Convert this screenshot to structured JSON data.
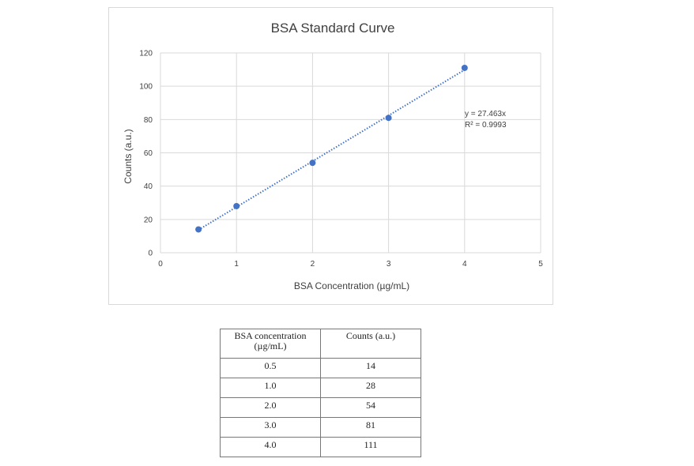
{
  "chart_data": {
    "type": "scatter",
    "title": "BSA Standard Curve",
    "xlabel": "BSA Concentration (µg/mL)",
    "ylabel": "Counts (a.u.)",
    "xlim": [
      0,
      5
    ],
    "ylim": [
      0,
      120
    ],
    "xticks": [
      "0",
      "1",
      "2",
      "3",
      "4",
      "5"
    ],
    "yticks": [
      "0",
      "20",
      "40",
      "60",
      "80",
      "100",
      "120"
    ],
    "grid": true,
    "series": [
      {
        "x": [
          0.5,
          1.0,
          2.0,
          3.0,
          4.0
        ],
        "y": [
          14,
          28,
          54,
          81,
          111
        ],
        "color": "#4472c4"
      }
    ],
    "trendline": {
      "type": "linear-through-origin",
      "slope": 27.463,
      "x_range": [
        0.5,
        4.0
      ],
      "style": "dotted",
      "color": "#4472c4",
      "equation": "y = 27.463x",
      "r_squared": "R² = 0.9993"
    }
  },
  "table": {
    "headers": [
      "BSA concentration (µg/mL)",
      "Counts (a.u.)"
    ],
    "rows": [
      [
        "0.5",
        "14"
      ],
      [
        "1.0",
        "28"
      ],
      [
        "2.0",
        "54"
      ],
      [
        "3.0",
        "81"
      ],
      [
        "4.0",
        "111"
      ]
    ]
  }
}
